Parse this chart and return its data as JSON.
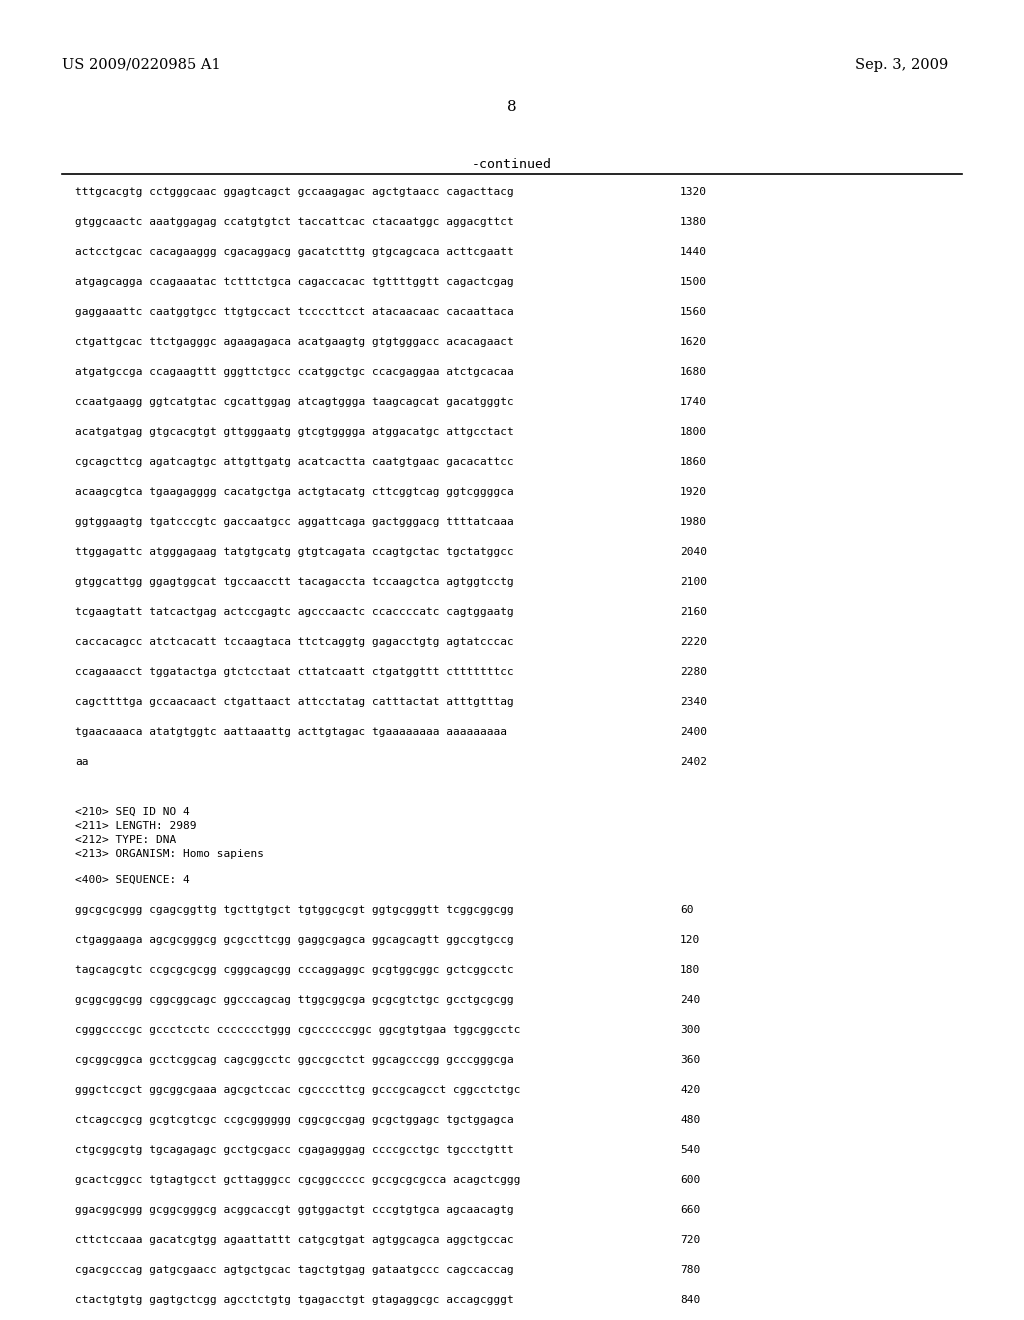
{
  "patent_number": "US 2009/0220985 A1",
  "date": "Sep. 3, 2009",
  "page_number": "8",
  "continued_label": "-continued",
  "background_color": "#ffffff",
  "text_color": "#000000",
  "sequence_lines": [
    [
      "tttgcacgtg cctgggcaac ggagtcagct gccaagagac agctgtaacc cagacttacg",
      "1320"
    ],
    [
      "gtggcaactc aaatggagag ccatgtgtct taccattcac ctacaatggc aggacgttct",
      "1380"
    ],
    [
      "actcctgcac cacagaaggg cgacaggacg gacatctttg gtgcagcaca acttcgaatt",
      "1440"
    ],
    [
      "atgagcagga ccagaaatac tctttctgca cagaccacac tgttttggtt cagactcgag",
      "1500"
    ],
    [
      "gaggaaattc caatggtgcc ttgtgccact tccccttcct atacaacaac cacaattaca",
      "1560"
    ],
    [
      "ctgattgcac ttctgagggc agaagagaca acatgaagtg gtgtgggacc acacagaact",
      "1620"
    ],
    [
      "atgatgccga ccagaagttt gggttctgcc ccatggctgc ccacgaggaa atctgcacaa",
      "1680"
    ],
    [
      "ccaatgaagg ggtcatgtac cgcattggag atcagtggga taagcagcat gacatgggtc",
      "1740"
    ],
    [
      "acatgatgag gtgcacgtgt gttgggaatg gtcgtgggga atggacatgc attgcctact",
      "1800"
    ],
    [
      "cgcagcttcg agatcagtgc attgttgatg acatcactta caatgtgaac gacacattcc",
      "1860"
    ],
    [
      "acaagcgtca tgaagagggg cacatgctga actgtacatg cttcggtcag ggtcggggca",
      "1920"
    ],
    [
      "ggtggaagtg tgatcccgtc gaccaatgcc aggattcaga gactgggacg ttttatcaaa",
      "1980"
    ],
    [
      "ttggagattc atgggagaag tatgtgcatg gtgtcagata ccagtgctac tgctatggcc",
      "2040"
    ],
    [
      "gtggcattgg ggagtggcat tgccaacctt tacagaccta tccaagctca agtggtcctg",
      "2100"
    ],
    [
      "tcgaagtatt tatcactgag actccgagtc agcccaactc ccaccccatc cagtggaatg",
      "2160"
    ],
    [
      "caccacagcc atctcacatt tccaagtaca ttctcaggtg gagacctgtg agtatcccac",
      "2220"
    ],
    [
      "ccagaaacct tggatactga gtctcctaat cttatcaatt ctgatggttt ctttttttcc",
      "2280"
    ],
    [
      "cagcttttga gccaacaact ctgattaact attcctatag catttactat atttgtttag",
      "2340"
    ],
    [
      "tgaacaaaca atatgtggtc aattaaattg acttgtagac tgaaaaaaaa aaaaaaaaa",
      "2400"
    ],
    [
      "aa",
      "2402"
    ]
  ],
  "metadata_lines": [
    "<210> SEQ ID NO 4",
    "<211> LENGTH: 2989",
    "<212> TYPE: DNA",
    "<213> ORGANISM: Homo sapiens"
  ],
  "sequence_label": "<400> SEQUENCE: 4",
  "sequence2_lines": [
    [
      "ggcgcgcggg cgagcggttg tgcttgtgct tgtggcgcgt ggtgcgggtt tcggcggcgg",
      "60"
    ],
    [
      "ctgaggaaga agcgcgggcg gcgccttcgg gaggcgagca ggcagcagtt ggccgtgccg",
      "120"
    ],
    [
      "tagcagcgtc ccgcgcgcgg cgggcagcgg cccaggaggc gcgtggcggc gctcggcctc",
      "180"
    ],
    [
      "gcggcggcgg cggcggcagc ggcccagcag ttggcggcga gcgcgtctgc gcctgcgcgg",
      "240"
    ],
    [
      "cgggccccgc gccctcctc ccccccctggg cgccccccggc ggcgtgtgaa tggcggcctc",
      "300"
    ],
    [
      "cgcggcggca gcctcggcag cagcggcctc ggccgcctct ggcagcccgg gcccgggcga",
      "360"
    ],
    [
      "gggctccgct ggcggcgaaa agcgctccac cgccccttcg gcccgcagcct cggcctctgc",
      "420"
    ],
    [
      "ctcagccgcg gcgtcgtcgc ccgcgggggg cggcgccgag gcgctggagc tgctggagca",
      "480"
    ],
    [
      "ctgcggcgtg tgcagagagc gcctgcgacc cgagagggag ccccgcctgc tgccctgttt",
      "540"
    ],
    [
      "gcactcggcc tgtagtgcct gcttagggcc cgcggccccc gccgcgcgcca acagctcggg",
      "600"
    ],
    [
      "ggacggcggg gcggcgggcg acggcaccgt ggtggactgt cccgtgtgca agcaacagtg",
      "660"
    ],
    [
      "cttctccaaa gacatcgtgg agaattattt catgcgtgat agtggcagca aggctgccac",
      "720"
    ],
    [
      "cgacgcccag gatgcgaacc agtgctgcac tagctgtgag gataatgccc cagccaccag",
      "780"
    ],
    [
      "ctactgtgtg gagtgctcgg agcctctgtg tgagacctgt gtagaggcgc accagcgggt",
      "840"
    ]
  ]
}
